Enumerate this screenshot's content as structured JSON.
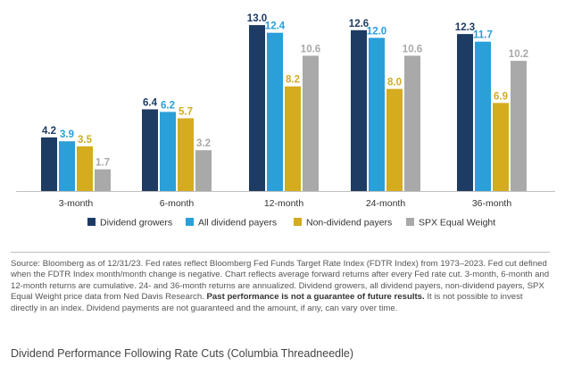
{
  "chart_data": {
    "type": "bar",
    "categories": [
      "3-month",
      "6-month",
      "12-month",
      "24-month",
      "36-month"
    ],
    "series": [
      {
        "name": "Dividend growers",
        "color": "#1d3b63",
        "values": [
          4.2,
          6.4,
          13.0,
          12.6,
          12.3
        ],
        "labels": [
          "4.2",
          "6.4",
          "13.0",
          "12.6",
          "12.3"
        ]
      },
      {
        "name": "All dividend payers",
        "color": "#2a9fd8",
        "values": [
          3.9,
          6.2,
          12.4,
          12.0,
          11.7
        ],
        "labels": [
          "3.9",
          "6.2",
          "12.4",
          "12.0",
          "11.7"
        ]
      },
      {
        "name": "Non-dividend payers",
        "color": "#d4ac1e",
        "values": [
          3.5,
          5.7,
          8.2,
          8.0,
          6.9
        ],
        "labels": [
          "3.5",
          "5.7",
          "8.2",
          "8.0",
          "6.9"
        ]
      },
      {
        "name": "SPX Equal Weight",
        "color": "#a9a9a9",
        "values": [
          1.7,
          3.2,
          10.6,
          10.6,
          10.2
        ],
        "labels": [
          "1.7",
          "3.2",
          "10.6",
          "10.6",
          "10.2"
        ]
      }
    ],
    "title": "",
    "xlabel": "",
    "ylabel": "",
    "ylim": [
      0,
      14
    ],
    "grid": false,
    "legend_position": "bottom"
  },
  "footnote": {
    "part1": "Source: Bloomberg as of 12/31/23. Fed rates reflect Bloomberg Fed Funds Target Rate Index (FDTR Index) from 1973–2023. Fed cut defined when the FDTR Index month/month change is negative. Chart reflects average forward returns after every Fed rate cut. 3-month, 6-month and 12-month returns are cumulative. 24- and 36-month returns are annualized. Dividend growers, all dividend payers, non-dividend payers, SPX Equal Weight price data from Ned Davis Research. ",
    "bold": "Past performance is not a guarantee of future results.",
    "part2": " It is not possible to invest directly in an index. Dividend payments are not guaranteed and the amount, if any, can vary over time."
  },
  "caption": "Dividend Performance Following Rate Cuts (Columbia Threadneedle)"
}
